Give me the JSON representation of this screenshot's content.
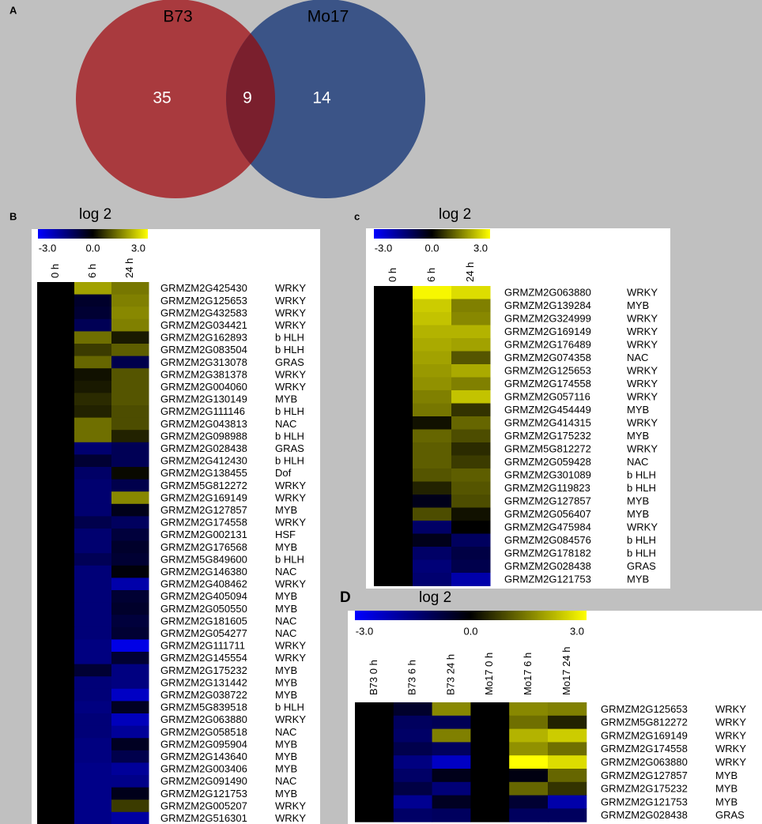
{
  "chart_data": [
    {
      "type": "venn",
      "panel": "A",
      "sets": [
        {
          "name": "B73",
          "color": "#a93a3e",
          "value": 35
        },
        {
          "name": "Mo17",
          "color": "#3b5487",
          "value": 14
        }
      ],
      "overlap": {
        "value": 9,
        "color": "#7a1f2d"
      }
    },
    {
      "type": "heatmap",
      "panel": "B",
      "colorscale": {
        "title": "log 2",
        "range": [
          -3,
          3
        ],
        "colors": [
          "#0000ff",
          "#000000",
          "#ffff00"
        ],
        "ticks": [
          {
            "value": -3,
            "label": "-3.0"
          },
          {
            "value": 0,
            "label": "0.0"
          },
          {
            "value": 3,
            "label": "3.0"
          }
        ]
      },
      "columns": [
        "0 h",
        "6 h",
        "24 h"
      ],
      "genes": [
        "GRMZM2G425430",
        "GRMZM2G125653",
        "GRMZM2G432583",
        "GRMZM2G034421",
        "GRMZM2G162893",
        "GRMZM2G083504",
        "GRMZM2G313078",
        "GRMZM2G381378",
        "GRMZM2G004060",
        "GRMZM2G130149",
        "GRMZM2G111146",
        "GRMZM2G043813",
        "GRMZM2G098988",
        "GRMZM2G028438",
        "GRMZM2G412430",
        "GRMZM2G138455",
        "GRMZM5G812272",
        "GRMZM2G169149",
        "GRMZM2G127857",
        "GRMZM2G174558",
        "GRMZM2G002131",
        "GRMZM2G176568",
        "GRMZM5G849600",
        "GRMZM2G146380",
        "GRMZM2G408462",
        "GRMZM2G405094",
        "GRMZM2G050550",
        "GRMZM2G181605",
        "GRMZM2G054277",
        "GRMZM2G111711",
        "GRMZM2G145554",
        "GRMZM2G175232",
        "GRMZM2G131442",
        "GRMZM2G038722",
        "GRMZM5G839518",
        "GRMZM2G063880",
        "GRMZM2G058518",
        "GRMZM2G095904",
        "GRMZM2G143640",
        "GRMZM2G003406",
        "GRMZM2G091490",
        "GRMZM2G121753",
        "GRMZM2G005207",
        "GRMZM2G516301"
      ],
      "families": [
        "WRKY",
        "WRKY",
        "WRKY",
        "WRKY",
        "b HLH",
        "b HLH",
        "GRAS",
        "WRKY",
        "WRKY",
        "MYB",
        "b HLH",
        "NAC",
        "b HLH",
        "GRAS",
        "b HLH",
        "Dof",
        "WRKY",
        "WRKY",
        "MYB",
        "WRKY",
        "HSF",
        "MYB",
        "b HLH",
        "NAC",
        "WRKY",
        "MYB",
        "MYB",
        "NAC",
        "NAC",
        "WRKY",
        "WRKY",
        "MYB",
        "MYB",
        "MYB",
        "b HLH",
        "WRKY",
        "NAC",
        "MYB",
        "MYB",
        "MYB",
        "NAC",
        "MYB",
        "WRKY",
        "WRKY"
      ],
      "values": [
        [
          0,
          1.9,
          1.4
        ],
        [
          0,
          -0.5,
          1.5
        ],
        [
          0,
          -0.6,
          1.6
        ],
        [
          0,
          -1.0,
          1.5
        ],
        [
          0,
          1.3,
          0.3
        ],
        [
          0,
          0.7,
          1.1
        ],
        [
          0,
          1.2,
          -0.9
        ],
        [
          0,
          0.2,
          1.0
        ],
        [
          0,
          0.3,
          1.0
        ],
        [
          0,
          0.5,
          1.0
        ],
        [
          0,
          0.4,
          0.9
        ],
        [
          0,
          1.3,
          0.9
        ],
        [
          0,
          1.3,
          0.4
        ],
        [
          0,
          -1.3,
          -1.0
        ],
        [
          0,
          -0.6,
          -1.0
        ],
        [
          0,
          -1.2,
          0.1
        ],
        [
          0,
          -1.3,
          -0.9
        ],
        [
          0,
          -1.3,
          1.6
        ],
        [
          0,
          -1.3,
          -0.3
        ],
        [
          0,
          -0.9,
          -1.1
        ],
        [
          0,
          -1.3,
          -0.7
        ],
        [
          0,
          -1.3,
          -0.5
        ],
        [
          0,
          -1.0,
          -0.6
        ],
        [
          0,
          -1.4,
          -0.1
        ],
        [
          0,
          -1.4,
          -2.0
        ],
        [
          0,
          -1.4,
          -0.6
        ],
        [
          0,
          -1.4,
          -0.5
        ],
        [
          0,
          -1.4,
          -0.7
        ],
        [
          0,
          -1.4,
          -0.6
        ],
        [
          0,
          -1.5,
          -2.7
        ],
        [
          0,
          -1.5,
          -0.6
        ],
        [
          0,
          -0.6,
          -1.5
        ],
        [
          0,
          -1.4,
          -1.5
        ],
        [
          0,
          -1.4,
          -2.3
        ],
        [
          0,
          -1.5,
          -0.4
        ],
        [
          0,
          -1.4,
          -2.2
        ],
        [
          0,
          -1.4,
          -1.8
        ],
        [
          0,
          -1.5,
          -0.4
        ],
        [
          0,
          -1.5,
          -0.9
        ],
        [
          0,
          -1.6,
          -1.8
        ],
        [
          0,
          -1.6,
          -1.6
        ],
        [
          0,
          -1.6,
          -0.3
        ],
        [
          0,
          -1.6,
          0.7
        ],
        [
          0,
          -1.6,
          -1.9
        ]
      ]
    },
    {
      "type": "heatmap",
      "panel": "c",
      "colorscale": {
        "title": "log 2",
        "range": [
          -3,
          3
        ],
        "colors": [
          "#0000ff",
          "#000000",
          "#ffff00"
        ],
        "ticks": [
          {
            "value": -3,
            "label": "-3.0"
          },
          {
            "value": 0,
            "label": "0.0"
          },
          {
            "value": 3,
            "label": "3.0"
          }
        ]
      },
      "columns": [
        "0 h",
        "6 h",
        "24 h"
      ],
      "genes": [
        "GRMZM2G063880",
        "GRMZM2G139284",
        "GRMZM2G324999",
        "GRMZM2G169149",
        "GRMZM2G176489",
        "GRMZM2G074358",
        "GRMZM2G125653",
        "GRMZM2G174558",
        "GRMZM2G057116",
        "GRMZM2G454449",
        "GRMZM2G414315",
        "GRMZM2G175232",
        "GRMZM5G812272",
        "GRMZM2G059428",
        "GRMZM2G301089",
        "GRMZM2G119823",
        "GRMZM2G127857",
        "GRMZM2G056407",
        "GRMZM2G475984",
        "GRMZM2G084576",
        "GRMZM2G178182",
        "GRMZM2G028438",
        "GRMZM2G121753"
      ],
      "families": [
        "WRKY",
        "MYB",
        "WRKY",
        "WRKY",
        "WRKY",
        "NAC",
        "WRKY",
        "WRKY",
        "WRKY",
        "MYB",
        "WRKY",
        "MYB",
        "WRKY",
        "NAC",
        "b HLH",
        "b HLH",
        "MYB",
        "MYB",
        "WRKY",
        "b HLH",
        "b HLH",
        "GRAS",
        "MYB"
      ],
      "values": [
        [
          0,
          2.9,
          2.6
        ],
        [
          0,
          2.4,
          1.5
        ],
        [
          0,
          2.3,
          1.6
        ],
        [
          0,
          2.1,
          2.1
        ],
        [
          0,
          2.0,
          1.9
        ],
        [
          0,
          1.9,
          1.0
        ],
        [
          0,
          1.8,
          2.0
        ],
        [
          0,
          1.7,
          1.5
        ],
        [
          0,
          1.5,
          2.3
        ],
        [
          0,
          1.4,
          0.6
        ],
        [
          0,
          0.2,
          1.2
        ],
        [
          0,
          1.2,
          0.9
        ],
        [
          0,
          1.1,
          0.5
        ],
        [
          0,
          1.1,
          0.7
        ],
        [
          0,
          1.0,
          1.1
        ],
        [
          0,
          0.4,
          1.0
        ],
        [
          0,
          -0.3,
          0.9
        ],
        [
          0,
          0.9,
          0.2
        ],
        [
          0,
          -1.2,
          0.0
        ],
        [
          0,
          -0.3,
          -1.1
        ],
        [
          0,
          -1.2,
          -0.8
        ],
        [
          0,
          -1.4,
          -0.9
        ],
        [
          0,
          -1.3,
          -2.0
        ]
      ]
    },
    {
      "type": "heatmap",
      "panel": "D",
      "colorscale": {
        "title": "log 2",
        "range": [
          -3,
          3
        ],
        "colors": [
          "#0000ff",
          "#000000",
          "#ffff00"
        ],
        "ticks": [
          {
            "value": -3,
            "label": "-3.0"
          },
          {
            "value": 0,
            "label": "0.0"
          },
          {
            "value": 3,
            "label": "3.0"
          }
        ]
      },
      "columns": [
        "B73 0 h",
        "B73 6 h",
        "B73 24 h",
        "Mo17 0 h",
        "Mo17 6 h",
        "Mo17 24 h"
      ],
      "genes": [
        "GRMZM2G125653",
        "GRMZM5G812272",
        "GRMZM2G169149",
        "GRMZM2G174558",
        "GRMZM2G063880",
        "GRMZM2G127857",
        "GRMZM2G175232",
        "GRMZM2G121753",
        "GRMZM2G028438"
      ],
      "families": [
        "WRKY",
        "WRKY",
        "WRKY",
        "WRKY",
        "WRKY",
        "MYB",
        "MYB",
        "MYB",
        "GRAS"
      ],
      "values": [
        [
          0,
          -0.5,
          1.6,
          0,
          1.6,
          1.5
        ],
        [
          0,
          -1.1,
          -1.0,
          0,
          1.3,
          0.4
        ],
        [
          0,
          -1.2,
          1.5,
          0,
          2.1,
          2.4
        ],
        [
          0,
          -0.9,
          -1.1,
          0,
          1.7,
          1.3
        ],
        [
          0,
          -1.5,
          -2.3,
          0,
          3.0,
          2.6
        ],
        [
          0,
          -1.2,
          -0.3,
          0,
          -0.2,
          1.2
        ],
        [
          0,
          -0.8,
          -1.4,
          0,
          1.2,
          0.6
        ],
        [
          0,
          -1.7,
          -0.4,
          0,
          -0.6,
          -2.0
        ],
        [
          0,
          -1.2,
          -1.1,
          0,
          -1.1,
          -1.1
        ]
      ]
    }
  ]
}
